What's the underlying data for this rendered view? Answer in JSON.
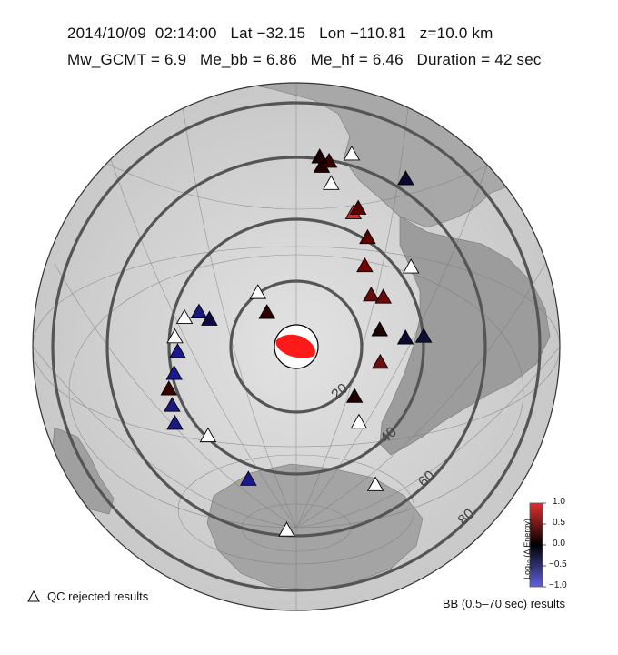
{
  "header": {
    "line1": "2014/10/09  02:14:00   Lat −32.15   Lon −110.81   z=10.0 km",
    "line2": "Mw_GCMT = 6.9   Me_bb = 6.86   Me_hf = 6.46   Duration = 42 sec"
  },
  "map": {
    "distance_rings": [
      "20",
      "40",
      "60",
      "80"
    ],
    "colors": {
      "ocean": "#cfcfcf",
      "land": "#9a9a9a",
      "ring": "#555555",
      "beachball": "#ff1a1a"
    }
  },
  "stations": [
    {
      "dist": 15,
      "az": 320,
      "color": "#2a0000",
      "qc": false
    },
    {
      "dist": 22,
      "az": 325,
      "color": "#ffffff",
      "qc": true
    },
    {
      "dist": 30,
      "az": 288,
      "color": "#0b0b40",
      "qc": false
    },
    {
      "dist": 34,
      "az": 290,
      "color": "#1a1a80",
      "qc": false
    },
    {
      "dist": 38,
      "az": 285,
      "color": "#ffffff",
      "qc": true
    },
    {
      "dist": 40,
      "az": 275,
      "color": "#ffffff",
      "qc": true
    },
    {
      "dist": 39,
      "az": 268,
      "color": "#1a1a90",
      "qc": false
    },
    {
      "dist": 41,
      "az": 258,
      "color": "#1a1a90",
      "qc": false
    },
    {
      "dist": 44,
      "az": 252,
      "color": "#3a0000",
      "qc": false
    },
    {
      "dist": 45,
      "az": 245,
      "color": "#1a1a80",
      "qc": false
    },
    {
      "dist": 47,
      "az": 238,
      "color": "#1a1a80",
      "qc": false
    },
    {
      "dist": 41,
      "az": 225,
      "color": "#ffffff",
      "qc": true
    },
    {
      "dist": 46,
      "az": 200,
      "color": "#1a1a90",
      "qc": false
    },
    {
      "dist": 52,
      "az": 150,
      "color": "#ffffff",
      "qc": true
    },
    {
      "dist": 32,
      "az": 140,
      "color": "#ffffff",
      "qc": true
    },
    {
      "dist": 25,
      "az": 130,
      "color": "#200000",
      "qc": false
    },
    {
      "dist": 28,
      "az": 78,
      "color": "#200000",
      "qc": false
    },
    {
      "dist": 28,
      "az": 100,
      "color": "#6a1010",
      "qc": false
    },
    {
      "dist": 36,
      "az": 85,
      "color": "#0a0a30",
      "qc": false
    },
    {
      "dist": 42,
      "az": 85,
      "color": "#10103a",
      "qc": false
    },
    {
      "dist": 30,
      "az": 55,
      "color": "#6a0a0a",
      "qc": false
    },
    {
      "dist": 33,
      "az": 60,
      "color": "#6a0a0a",
      "qc": false
    },
    {
      "dist": 46,
      "az": 55,
      "color": "#ffffff",
      "qc": true
    },
    {
      "dist": 35,
      "az": 40,
      "color": "#7a0000",
      "qc": false
    },
    {
      "dist": 43,
      "az": 33,
      "color": "#5a0000",
      "qc": false
    },
    {
      "dist": 48,
      "az": 23,
      "color": "#c43030",
      "qc": false
    },
    {
      "dist": 50,
      "az": 24,
      "color": "#5a0000",
      "qc": false
    },
    {
      "dist": 55,
      "az": 12,
      "color": "#ffffff",
      "qc": true
    },
    {
      "dist": 60,
      "az": 8,
      "color": "#200000",
      "qc": false
    },
    {
      "dist": 62,
      "az": 10,
      "color": "#3a0000",
      "qc": false
    },
    {
      "dist": 63,
      "az": 7,
      "color": "#1a0000",
      "qc": false
    },
    {
      "dist": 66,
      "az": 16,
      "color": "#ffffff",
      "qc": true
    },
    {
      "dist": 66,
      "az": 33,
      "color": "#0a0a30",
      "qc": false
    },
    {
      "dist": 60,
      "az": 183,
      "color": "#ffffff",
      "qc": true
    }
  ],
  "colorbar": {
    "title": "Log₁₀ (Δ Energy)",
    "ticks": [
      "1.0",
      "0.5",
      "0.0",
      "−0.5",
      "−1.0"
    ],
    "colors": {
      "top": "#e03030",
      "mid": "#000000",
      "bottom": "#6060e0"
    }
  },
  "legend": {
    "qc_label": "QC rejected results",
    "bb_label": "BB (0.5–70 sec) results"
  }
}
